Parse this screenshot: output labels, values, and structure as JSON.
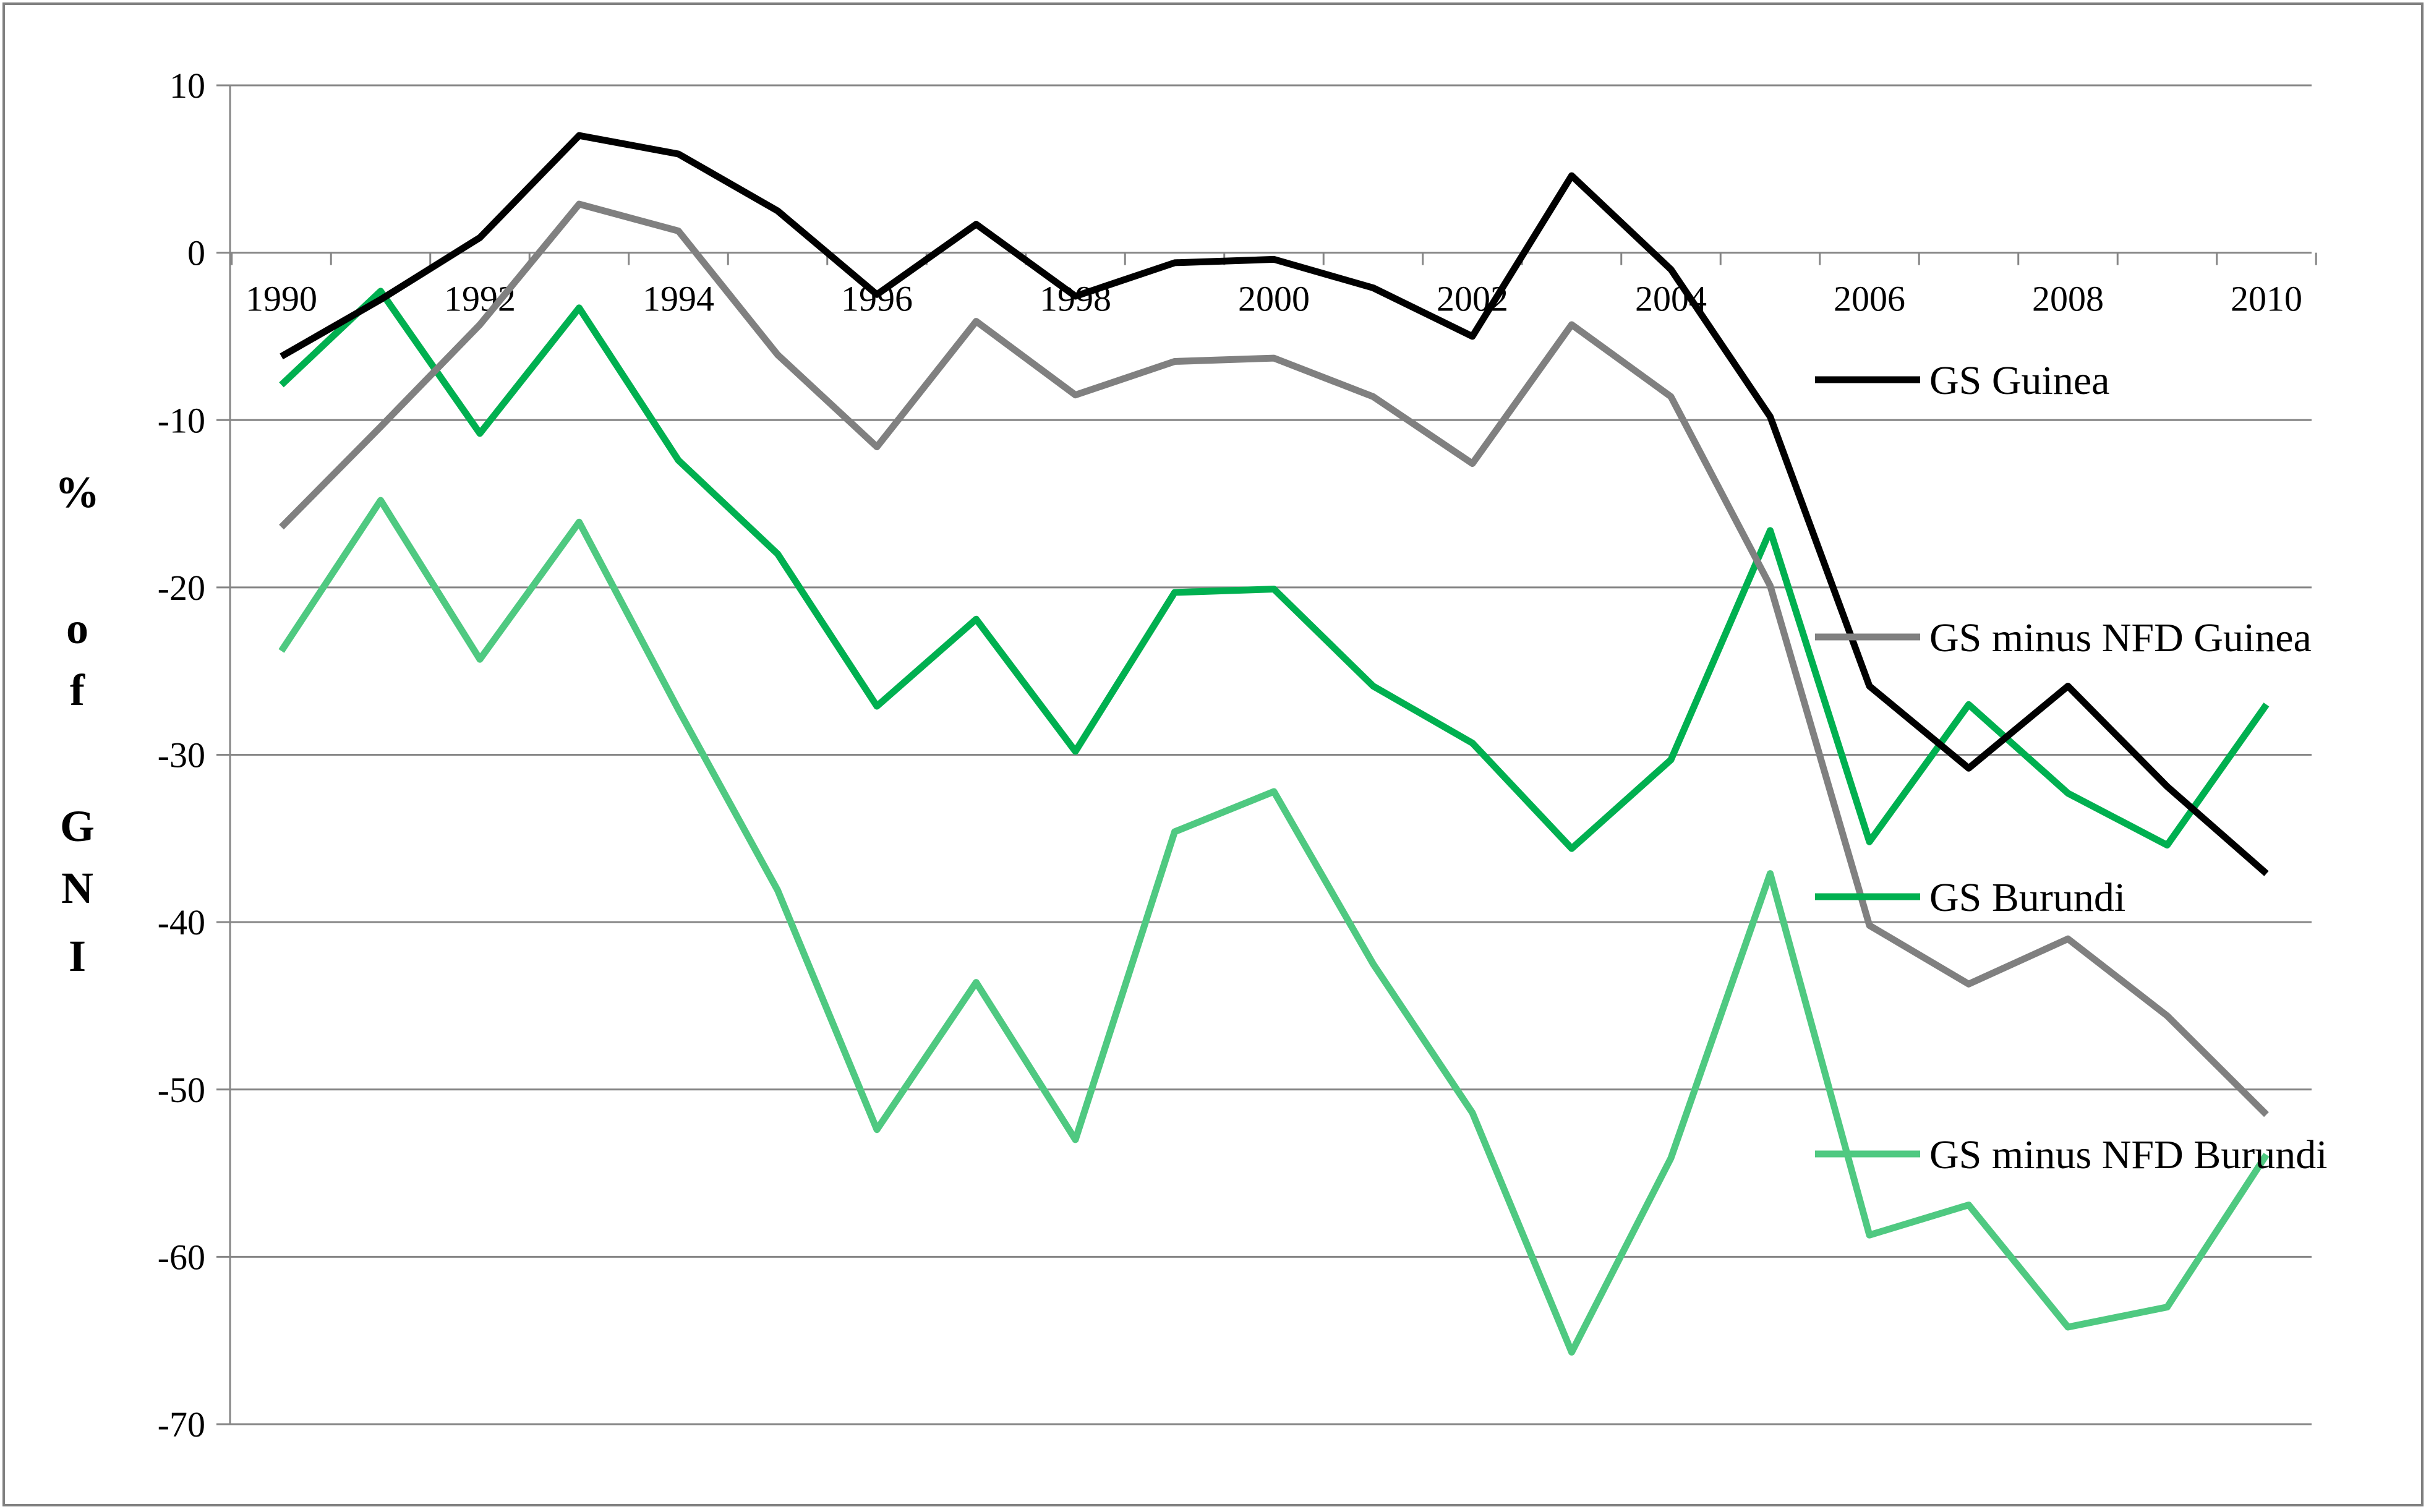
{
  "chart_data": {
    "type": "line",
    "ylabel": "% of GNI",
    "ylabel_chars": [
      "%",
      "o",
      "f",
      "G",
      "N",
      "I"
    ],
    "xlabel": "",
    "ylim": [
      -70,
      10
    ],
    "yticks": [
      "10",
      "0",
      "-10",
      "-20",
      "-30",
      "-40",
      "-50",
      "-60",
      "-70"
    ],
    "xticks": [
      "1990",
      "1992",
      "1994",
      "1996",
      "1998",
      "2000",
      "2002",
      "2004",
      "2006",
      "2008",
      "2010"
    ],
    "x": [
      1990,
      1991,
      1992,
      1993,
      1994,
      1995,
      1996,
      1997,
      1998,
      1999,
      2000,
      2001,
      2002,
      2003,
      2004,
      2005,
      2006,
      2007,
      2008,
      2009,
      2010
    ],
    "grid": true,
    "legend_position": "right",
    "series": [
      {
        "name": "GS Guinea",
        "color": "#000000",
        "values": [
          -6.2,
          -2.8,
          0.9,
          7.0,
          5.9,
          2.5,
          -2.5,
          1.7,
          -2.6,
          -0.6,
          -0.4,
          -2.1,
          -5.0,
          4.6,
          -1.0,
          -9.8,
          -25.9,
          -30.8,
          -25.9,
          -31.9,
          -37.1
        ]
      },
      {
        "name": "GS minus NFD Guinea",
        "color": "#808080",
        "values": [
          -16.4,
          -10.4,
          -4.3,
          2.9,
          1.3,
          -6.1,
          -11.6,
          -4.1,
          -8.5,
          -6.5,
          -6.3,
          -8.6,
          -12.6,
          -4.3,
          -8.6,
          -19.9,
          -40.2,
          -43.7,
          -41.0,
          -45.6,
          -51.5
        ]
      },
      {
        "name": "GS Burundi",
        "color": "#00B050",
        "values": [
          -7.9,
          -2.3,
          -10.8,
          -3.3,
          -12.4,
          -18.0,
          -27.1,
          -21.9,
          -29.8,
          -20.3,
          -20.1,
          -25.9,
          -29.3,
          -35.6,
          -30.3,
          -16.6,
          -35.2,
          -27.0,
          -32.3,
          -35.4,
          -27.0
        ]
      },
      {
        "name": "GS minus NFD Burundi",
        "color": "#4FC981",
        "values": [
          -23.8,
          -14.8,
          -24.3,
          -16.1,
          -27.3,
          -38.1,
          -52.4,
          -43.6,
          -53.0,
          -34.6,
          -32.2,
          -42.5,
          -51.4,
          -65.7,
          -54.1,
          -37.1,
          -58.7,
          -56.9,
          -64.2,
          -63.0,
          -53.9
        ]
      }
    ]
  }
}
